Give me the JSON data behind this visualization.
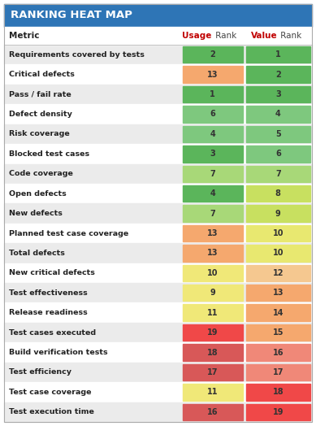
{
  "title": "RANKING HEAT MAP",
  "title_bg": "#2E75B6",
  "title_color": "#FFFFFF",
  "metrics": [
    "Requirements covered by tests",
    "Critical defects",
    "Pass / fail rate",
    "Defect density",
    "Risk coverage",
    "Blocked test cases",
    "Code coverage",
    "Open defects",
    "New defects",
    "Planned test case coverage",
    "Total defects",
    "New critical defects",
    "Test effectiveness",
    "Release readiness",
    "Test cases executed",
    "Build verification tests",
    "Test efficiency",
    "Test case coverage",
    "Test execution time"
  ],
  "usage_ranks": [
    2,
    13,
    1,
    6,
    4,
    3,
    7,
    4,
    7,
    13,
    13,
    10,
    9,
    11,
    19,
    18,
    17,
    11,
    16
  ],
  "value_ranks": [
    1,
    2,
    3,
    4,
    5,
    6,
    7,
    8,
    9,
    10,
    10,
    12,
    13,
    14,
    15,
    16,
    17,
    18,
    19
  ],
  "usage_colors": [
    "#5BB55B",
    "#F5A86E",
    "#5BB55B",
    "#7EC87E",
    "#7EC87E",
    "#5BB55B",
    "#A8D878",
    "#5BB55B",
    "#A8D878",
    "#F5A86E",
    "#F5A86E",
    "#F0E878",
    "#F0E878",
    "#F0E878",
    "#F04848",
    "#D85858",
    "#D85858",
    "#F0E878",
    "#D85858"
  ],
  "value_colors": [
    "#5BB55B",
    "#5BB55B",
    "#5BB55B",
    "#7EC87E",
    "#7EC87E",
    "#7EC87E",
    "#A8D878",
    "#C8E060",
    "#C8E060",
    "#E8E870",
    "#E8E870",
    "#F5C890",
    "#F5A86E",
    "#F5A86E",
    "#F5A86E",
    "#F08878",
    "#F08878",
    "#F04848",
    "#F04848"
  ],
  "row_bg_even": "#EBEBEB",
  "row_bg_odd": "#FFFFFF",
  "fig_bg": "#FFFFFF",
  "title_fontsize": 9.5,
  "header_fontsize": 7.5,
  "metric_fontsize": 6.8,
  "rank_fontsize": 7.0
}
